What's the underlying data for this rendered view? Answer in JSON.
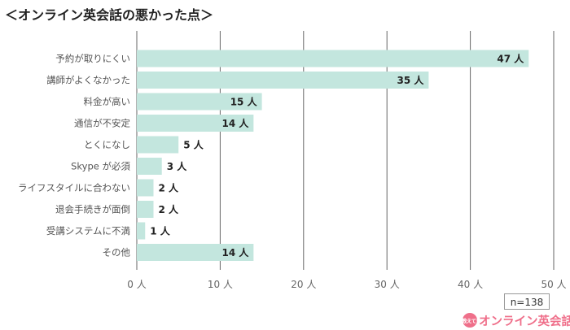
{
  "title": "＜オンライン英会話の悪かった点＞",
  "colors": {
    "bar": "#c3e6de",
    "grid": "#666666",
    "brand": "#ef6f8a"
  },
  "chart_data": {
    "type": "bar",
    "orientation": "horizontal",
    "title": "＜オンライン英会話の悪かった点＞",
    "categories": [
      "予約が取りにくい",
      "講師がよくなかった",
      "料金が高い",
      "通信が不安定",
      "とくになし",
      "Skype が必須",
      "ライフスタイルに合わない",
      "退会手続きが面倒",
      "受講システムに不満",
      "その他"
    ],
    "values": [
      47,
      35,
      15,
      14,
      5,
      3,
      2,
      2,
      1,
      14
    ],
    "value_labels": [
      "47 人",
      "35 人",
      "15 人",
      "14 人",
      "5 人",
      "3 人",
      "2 人",
      "2 人",
      "1 人",
      "14 人"
    ],
    "xlim": [
      0,
      50
    ],
    "xticks": [
      0,
      10,
      20,
      30,
      40,
      50
    ],
    "xtick_labels": [
      "0 人",
      "10 人",
      "20 人",
      "30 人",
      "40 人",
      "50 人"
    ],
    "grid": true
  },
  "sample_size": "n=138",
  "brand": {
    "badge": "教えて!",
    "name": "オンライン英会話"
  }
}
